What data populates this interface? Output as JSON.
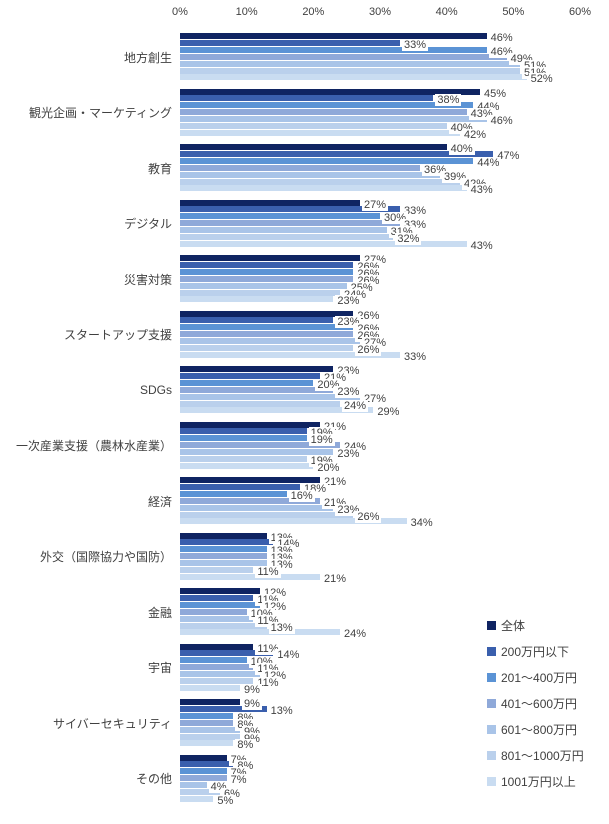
{
  "chart_data": {
    "type": "bar",
    "orientation": "horizontal",
    "title": "",
    "xlabel": "",
    "ylabel": "",
    "value_suffix": "%",
    "grid": false,
    "legend_position": "right-bottom",
    "x_axis": {
      "min": 0,
      "max": 60,
      "ticks": [
        "0%",
        "10%",
        "20%",
        "30%",
        "40%",
        "50%",
        "60%"
      ]
    },
    "categories": [
      "地方創生",
      "観光企画・マーケティング",
      "教育",
      "デジタル",
      "災害対策",
      "スタートアップ支援",
      "SDGs",
      "一次産業支援（農林水産業）",
      "経済",
      "外交（国際協力や国防）",
      "金融",
      "宇宙",
      "サイバーセキュリティ",
      "その他"
    ],
    "series": [
      {
        "name": "全体",
        "color": "#0f2462",
        "values": [
          46,
          45,
          40,
          27,
          27,
          26,
          23,
          21,
          21,
          13,
          12,
          11,
          9,
          7
        ]
      },
      {
        "name": "200万円以下",
        "color": "#3a5fad",
        "values": [
          33,
          38,
          47,
          33,
          26,
          23,
          21,
          19,
          18,
          14,
          11,
          14,
          13,
          8
        ]
      },
      {
        "name": "201～400万円",
        "color": "#5b93d5",
        "values": [
          46,
          44,
          44,
          30,
          26,
          26,
          20,
          19,
          16,
          13,
          12,
          10,
          8,
          7
        ]
      },
      {
        "name": "401～600万円",
        "color": "#8fa9d9",
        "values": [
          49,
          43,
          36,
          33,
          26,
          26,
          23,
          24,
          21,
          13,
          10,
          11,
          8,
          7
        ]
      },
      {
        "name": "601～800万円",
        "color": "#a9c4e8",
        "values": [
          51,
          46,
          39,
          31,
          25,
          27,
          27,
          23,
          23,
          13,
          11,
          12,
          9,
          4
        ]
      },
      {
        "name": "801～1000万円",
        "color": "#bad0ec",
        "values": [
          51,
          40,
          42,
          32,
          24,
          26,
          24,
          19,
          26,
          11,
          13,
          11,
          9,
          6
        ]
      },
      {
        "name": "1001万円以上",
        "color": "#c9dcf1",
        "values": [
          52,
          42,
          43,
          43,
          23,
          33,
          29,
          20,
          34,
          21,
          24,
          9,
          8,
          5
        ]
      }
    ]
  }
}
